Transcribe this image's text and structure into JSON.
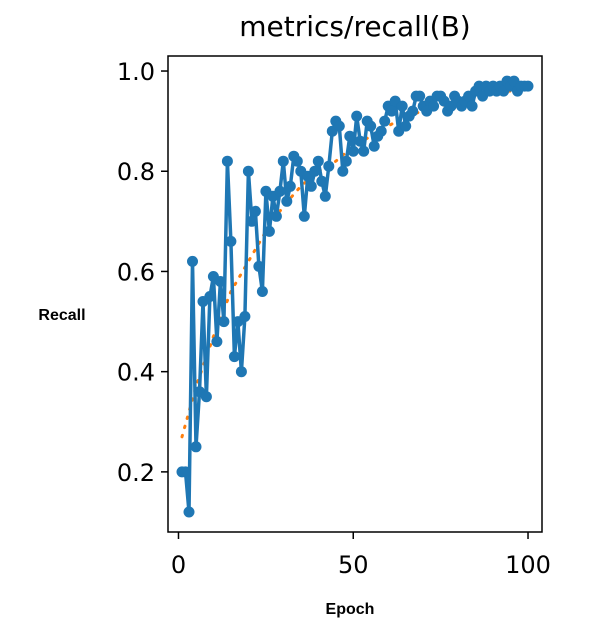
{
  "chart_data": {
    "type": "line",
    "title": "metrics/recall(B)",
    "xlabel": "Epoch",
    "ylabel": "Recall",
    "xlim": [
      -3,
      104
    ],
    "ylim": [
      0.08,
      1.03
    ],
    "xticks": [
      0,
      50,
      100
    ],
    "xtick_labels": [
      "0",
      "50",
      "100"
    ],
    "yticks": [
      0.2,
      0.4,
      0.6,
      0.8,
      1.0
    ],
    "ytick_labels": [
      "0.2",
      "0.4",
      "0.6",
      "0.8",
      "1.0"
    ],
    "grid": false,
    "legend": "none",
    "series": [
      {
        "style": "line-markers",
        "color": "#1f77b4",
        "x": [
          1,
          2,
          3,
          4,
          5,
          6,
          7,
          8,
          9,
          10,
          11,
          12,
          13,
          14,
          15,
          16,
          17,
          18,
          19,
          20,
          21,
          22,
          23,
          24,
          25,
          26,
          27,
          28,
          29,
          30,
          31,
          32,
          33,
          34,
          35,
          36,
          37,
          38,
          39,
          40,
          41,
          42,
          43,
          44,
          45,
          46,
          47,
          48,
          49,
          50,
          51,
          52,
          53,
          54,
          55,
          56,
          57,
          58,
          59,
          60,
          61,
          62,
          63,
          64,
          65,
          66,
          67,
          68,
          69,
          70,
          71,
          72,
          73,
          74,
          75,
          76,
          77,
          78,
          79,
          80,
          81,
          82,
          83,
          84,
          85,
          86,
          87,
          88,
          89,
          90,
          91,
          92,
          93,
          94,
          95,
          96,
          97,
          98,
          99,
          100
        ],
        "y": [
          0.2,
          0.2,
          0.12,
          0.62,
          0.25,
          0.36,
          0.54,
          0.35,
          0.55,
          0.59,
          0.46,
          0.58,
          0.5,
          0.82,
          0.66,
          0.43,
          0.5,
          0.4,
          0.51,
          0.8,
          0.7,
          0.72,
          0.61,
          0.56,
          0.76,
          0.68,
          0.75,
          0.71,
          0.76,
          0.82,
          0.74,
          0.77,
          0.83,
          0.82,
          0.8,
          0.71,
          0.79,
          0.77,
          0.8,
          0.82,
          0.78,
          0.75,
          0.81,
          0.88,
          0.9,
          0.89,
          0.8,
          0.82,
          0.87,
          0.84,
          0.91,
          0.86,
          0.84,
          0.9,
          0.89,
          0.85,
          0.87,
          0.88,
          0.9,
          0.93,
          0.92,
          0.94,
          0.88,
          0.93,
          0.89,
          0.91,
          0.92,
          0.95,
          0.95,
          0.93,
          0.92,
          0.94,
          0.93,
          0.95,
          0.95,
          0.94,
          0.92,
          0.93,
          0.95,
          0.94,
          0.93,
          0.94,
          0.95,
          0.93,
          0.96,
          0.97,
          0.95,
          0.97,
          0.96,
          0.97,
          0.96,
          0.97,
          0.96,
          0.98,
          0.97,
          0.98,
          0.96,
          0.97,
          0.97,
          0.97
        ]
      },
      {
        "style": "dotted",
        "color": "#ff7f0e",
        "x": [
          1,
          5,
          10,
          15,
          20,
          25,
          30,
          35,
          40,
          45,
          50,
          55,
          60,
          65,
          70,
          75,
          80,
          85,
          90,
          95,
          100
        ],
        "y": [
          0.27,
          0.37,
          0.47,
          0.56,
          0.62,
          0.68,
          0.73,
          0.77,
          0.8,
          0.82,
          0.85,
          0.87,
          0.89,
          0.91,
          0.92,
          0.93,
          0.94,
          0.95,
          0.96,
          0.96,
          0.97
        ]
      }
    ]
  }
}
